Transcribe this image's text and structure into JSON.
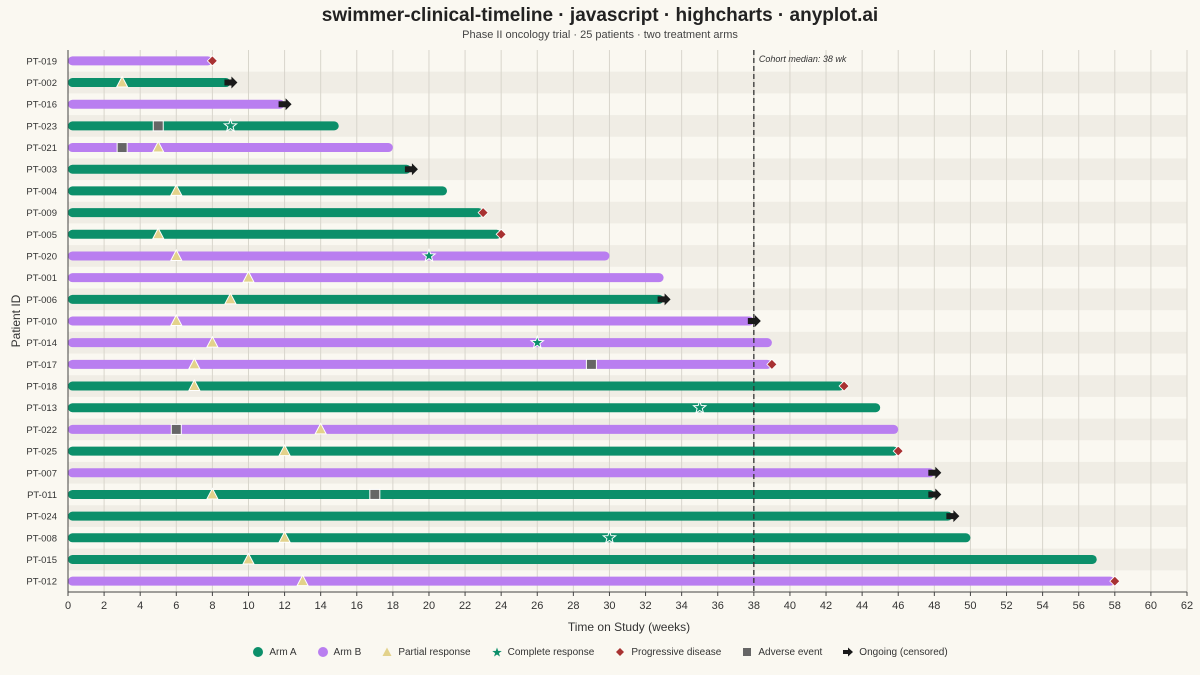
{
  "chart_data": {
    "type": "bar",
    "title": "swimmer-clinical-timeline · javascript · highcharts · anyplot.ai",
    "subtitle": "Phase II oncology trial · 25 patients · two treatment arms",
    "xlabel": "Time on Study (weeks)",
    "ylabel": "Patient ID",
    "xlim": [
      0,
      62
    ],
    "x_ticks": [
      "0",
      "2",
      "4",
      "6",
      "8",
      "10",
      "12",
      "14",
      "16",
      "18",
      "20",
      "22",
      "24",
      "26",
      "28",
      "30",
      "32",
      "34",
      "36",
      "38",
      "40",
      "42",
      "44",
      "46",
      "48",
      "50",
      "52",
      "54",
      "56",
      "58",
      "60",
      "62"
    ],
    "grid": true,
    "reference_line": {
      "value": 38,
      "label": "Cohort median: 38 wk"
    },
    "colors": {
      "arm_a": "#0c8f6a",
      "arm_b": "#b97ef0",
      "partial": "#e3d28b",
      "complete": "#0c8f6a",
      "progressive": "#a83232",
      "adverse": "#666666",
      "ongoing": "#1a1a1a"
    },
    "legend": [
      {
        "key": "arm_a",
        "label": "Arm A",
        "icon": "circle"
      },
      {
        "key": "arm_b",
        "label": "Arm B",
        "icon": "circle"
      },
      {
        "key": "partial",
        "label": "Partial response",
        "icon": "triangle"
      },
      {
        "key": "complete",
        "label": "Complete response",
        "icon": "star"
      },
      {
        "key": "progressive",
        "label": "Progressive disease",
        "icon": "diamond"
      },
      {
        "key": "adverse",
        "label": "Adverse event",
        "icon": "square"
      },
      {
        "key": "ongoing",
        "label": "Ongoing (censored)",
        "icon": "arrow"
      }
    ],
    "legend_position": "bottom",
    "patients": [
      {
        "id": "PT-019",
        "arm": "B",
        "duration": 8,
        "events": [
          {
            "type": "progressive",
            "week": 8
          }
        ]
      },
      {
        "id": "PT-002",
        "arm": "A",
        "duration": 9,
        "events": [
          {
            "type": "partial",
            "week": 3
          },
          {
            "type": "ongoing",
            "week": 9
          }
        ]
      },
      {
        "id": "PT-016",
        "arm": "B",
        "duration": 12,
        "events": [
          {
            "type": "ongoing",
            "week": 12
          }
        ]
      },
      {
        "id": "PT-023",
        "arm": "A",
        "duration": 15,
        "events": [
          {
            "type": "adverse",
            "week": 5
          },
          {
            "type": "complete",
            "week": 9
          }
        ]
      },
      {
        "id": "PT-021",
        "arm": "B",
        "duration": 18,
        "events": [
          {
            "type": "adverse",
            "week": 3
          },
          {
            "type": "partial",
            "week": 5
          }
        ]
      },
      {
        "id": "PT-003",
        "arm": "A",
        "duration": 19,
        "events": [
          {
            "type": "ongoing",
            "week": 19
          }
        ]
      },
      {
        "id": "PT-004",
        "arm": "A",
        "duration": 21,
        "events": [
          {
            "type": "partial",
            "week": 6
          }
        ]
      },
      {
        "id": "PT-009",
        "arm": "A",
        "duration": 23,
        "events": [
          {
            "type": "progressive",
            "week": 23
          }
        ]
      },
      {
        "id": "PT-005",
        "arm": "A",
        "duration": 24,
        "events": [
          {
            "type": "partial",
            "week": 5
          },
          {
            "type": "progressive",
            "week": 24
          }
        ]
      },
      {
        "id": "PT-020",
        "arm": "B",
        "duration": 30,
        "events": [
          {
            "type": "partial",
            "week": 6
          },
          {
            "type": "complete",
            "week": 20
          }
        ]
      },
      {
        "id": "PT-001",
        "arm": "B",
        "duration": 33,
        "events": [
          {
            "type": "partial",
            "week": 10
          }
        ]
      },
      {
        "id": "PT-006",
        "arm": "A",
        "duration": 33,
        "events": [
          {
            "type": "partial",
            "week": 9
          },
          {
            "type": "ongoing",
            "week": 33
          }
        ]
      },
      {
        "id": "PT-010",
        "arm": "B",
        "duration": 38,
        "events": [
          {
            "type": "partial",
            "week": 6
          },
          {
            "type": "ongoing",
            "week": 38
          }
        ]
      },
      {
        "id": "PT-014",
        "arm": "B",
        "duration": 39,
        "events": [
          {
            "type": "partial",
            "week": 8
          },
          {
            "type": "complete",
            "week": 26
          }
        ]
      },
      {
        "id": "PT-017",
        "arm": "B",
        "duration": 39,
        "events": [
          {
            "type": "partial",
            "week": 7
          },
          {
            "type": "adverse",
            "week": 29
          },
          {
            "type": "progressive",
            "week": 39
          }
        ]
      },
      {
        "id": "PT-018",
        "arm": "A",
        "duration": 43,
        "events": [
          {
            "type": "partial",
            "week": 7
          },
          {
            "type": "progressive",
            "week": 43
          }
        ]
      },
      {
        "id": "PT-013",
        "arm": "A",
        "duration": 45,
        "events": [
          {
            "type": "complete",
            "week": 35
          }
        ]
      },
      {
        "id": "PT-022",
        "arm": "B",
        "duration": 46,
        "events": [
          {
            "type": "adverse",
            "week": 6
          },
          {
            "type": "partial",
            "week": 14
          }
        ]
      },
      {
        "id": "PT-025",
        "arm": "A",
        "duration": 46,
        "events": [
          {
            "type": "partial",
            "week": 12
          },
          {
            "type": "progressive",
            "week": 46
          }
        ]
      },
      {
        "id": "PT-007",
        "arm": "B",
        "duration": 48,
        "events": [
          {
            "type": "ongoing",
            "week": 48
          }
        ]
      },
      {
        "id": "PT-011",
        "arm": "A",
        "duration": 48,
        "events": [
          {
            "type": "partial",
            "week": 8
          },
          {
            "type": "adverse",
            "week": 17
          },
          {
            "type": "ongoing",
            "week": 48
          }
        ]
      },
      {
        "id": "PT-024",
        "arm": "A",
        "duration": 49,
        "events": [
          {
            "type": "ongoing",
            "week": 49
          }
        ]
      },
      {
        "id": "PT-008",
        "arm": "A",
        "duration": 50,
        "events": [
          {
            "type": "partial",
            "week": 12
          },
          {
            "type": "complete",
            "week": 30
          }
        ]
      },
      {
        "id": "PT-015",
        "arm": "A",
        "duration": 57,
        "events": [
          {
            "type": "partial",
            "week": 10
          }
        ]
      },
      {
        "id": "PT-012",
        "arm": "B",
        "duration": 58,
        "events": [
          {
            "type": "partial",
            "week": 13
          },
          {
            "type": "progressive",
            "week": 58
          }
        ]
      }
    ]
  }
}
